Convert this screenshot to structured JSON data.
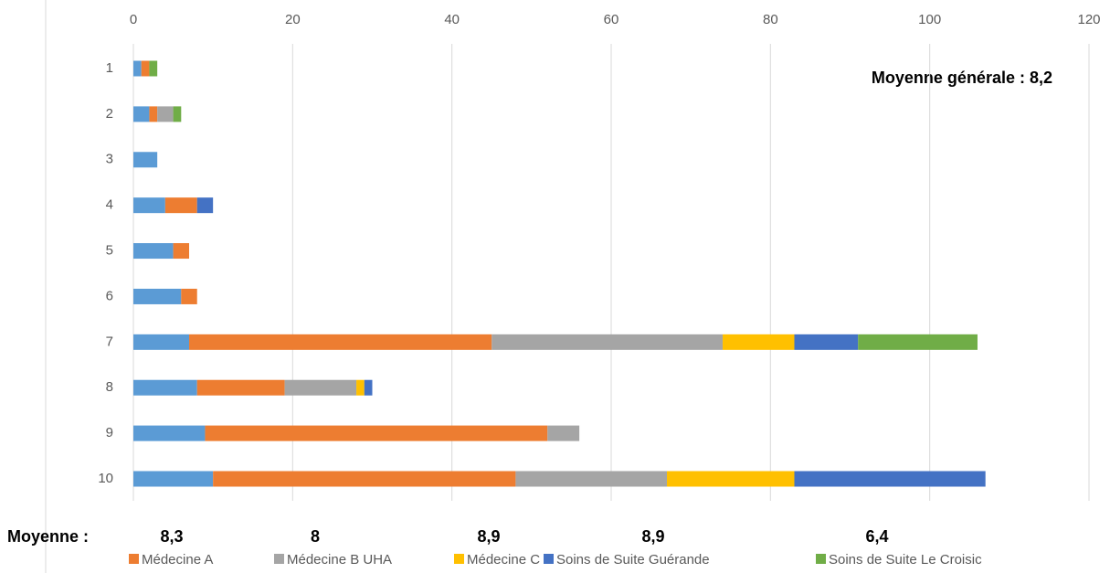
{
  "chart_data": {
    "type": "bar",
    "orientation": "horizontal",
    "stacked": true,
    "categories": [
      "1",
      "2",
      "3",
      "4",
      "5",
      "6",
      "7",
      "8",
      "9",
      "10"
    ],
    "series": [
      {
        "color": "#5b9bd5",
        "values": [
          1,
          2,
          3,
          4,
          5,
          6,
          7,
          8,
          9,
          10
        ]
      },
      {
        "name": "Médecine A",
        "color": "#ed7d31",
        "values": [
          1,
          1,
          0,
          4,
          2,
          2,
          38,
          11,
          43,
          38
        ]
      },
      {
        "name": "Médecine B UHA",
        "color": "#a5a5a5",
        "values": [
          0,
          2,
          0,
          0,
          0,
          0,
          29,
          9,
          4,
          19
        ]
      },
      {
        "name": "Médecine C",
        "color": "#ffc000",
        "values": [
          0,
          0,
          0,
          0,
          0,
          0,
          9,
          1,
          0,
          16
        ]
      },
      {
        "name": "Soins de Suite Guérande",
        "color": "#4472c4",
        "values": [
          0,
          0,
          0,
          2,
          0,
          0,
          8,
          1,
          0,
          24
        ]
      },
      {
        "name": "Soins de Suite Le Croisic",
        "color": "#70ad47",
        "values": [
          1,
          1,
          0,
          0,
          0,
          0,
          15,
          0,
          0,
          0
        ]
      }
    ],
    "xlim": [
      0,
      120
    ],
    "xticks": [
      0,
      20,
      40,
      60,
      80,
      100,
      120
    ],
    "grid": true,
    "annotations": {
      "general_average": "Moyenne générale : 8,2",
      "averages_label": "Moyenne :",
      "averages": [
        "8,3",
        "8",
        "8,9",
        "8,9",
        "6,4"
      ]
    }
  }
}
